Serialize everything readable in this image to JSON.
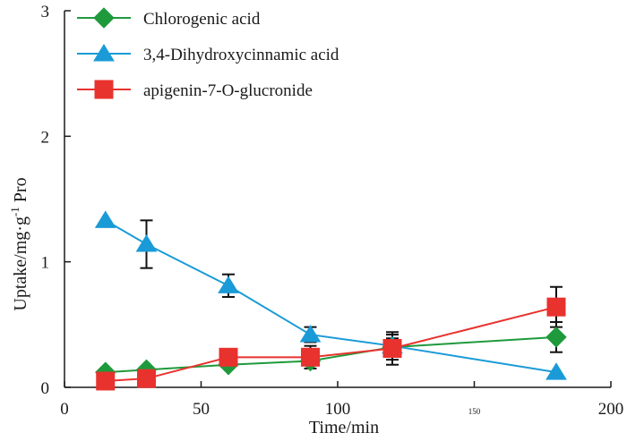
{
  "chart_data": {
    "type": "line",
    "title": "",
    "xlabel": "Time/min",
    "ylabel_main": "Uptake/mg·g",
    "ylabel_superscript": "-1",
    "ylabel_suffix": " Pro",
    "xlim": [
      0,
      200
    ],
    "ylim": [
      0,
      3
    ],
    "x_ticks": [
      {
        "value": 0,
        "label": "0"
      },
      {
        "value": 50,
        "label": "50"
      },
      {
        "value": 100,
        "label": "100"
      },
      {
        "value": 150,
        "label": "150",
        "small": true
      },
      {
        "value": 200,
        "label": "200"
      }
    ],
    "y_ticks": [
      {
        "value": 0,
        "label": "0"
      },
      {
        "value": 1,
        "label": "1"
      },
      {
        "value": 2,
        "label": "2"
      },
      {
        "value": 3,
        "label": "3"
      }
    ],
    "legend_position": "top-left",
    "grid": false,
    "series": [
      {
        "name": "Chlorogenic acid",
        "color": "#1e9a3c",
        "marker": "diamond",
        "points": [
          {
            "x": 15,
            "y": 0.12,
            "err": 0
          },
          {
            "x": 30,
            "y": 0.14,
            "err": 0
          },
          {
            "x": 60,
            "y": 0.18,
            "err": 0
          },
          {
            "x": 90,
            "y": 0.21,
            "err": 0
          },
          {
            "x": 120,
            "y": 0.32,
            "err": 0.1
          },
          {
            "x": 180,
            "y": 0.4,
            "err": 0.12
          }
        ]
      },
      {
        "name": "3,4-Dihydroxycinnamic acid",
        "color": "#1a9bd7",
        "marker": "triangle",
        "points": [
          {
            "x": 15,
            "y": 1.33,
            "err": 0
          },
          {
            "x": 30,
            "y": 1.14,
            "err": 0.19
          },
          {
            "x": 60,
            "y": 0.81,
            "err": 0.09
          },
          {
            "x": 90,
            "y": 0.42,
            "err": 0.06
          },
          {
            "x": 120,
            "y": 0.33,
            "err": 0.06
          },
          {
            "x": 180,
            "y": 0.12,
            "err": 0
          }
        ]
      },
      {
        "name": "apigenin-7-O-glucronide",
        "color": "#e8322e",
        "marker": "square",
        "points": [
          {
            "x": 15,
            "y": 0.05,
            "err": 0
          },
          {
            "x": 30,
            "y": 0.07,
            "err": 0
          },
          {
            "x": 60,
            "y": 0.24,
            "err": 0
          },
          {
            "x": 90,
            "y": 0.24,
            "err": 0.09
          },
          {
            "x": 120,
            "y": 0.31,
            "err": 0.13
          },
          {
            "x": 180,
            "y": 0.64,
            "err": 0.16
          }
        ]
      }
    ]
  }
}
